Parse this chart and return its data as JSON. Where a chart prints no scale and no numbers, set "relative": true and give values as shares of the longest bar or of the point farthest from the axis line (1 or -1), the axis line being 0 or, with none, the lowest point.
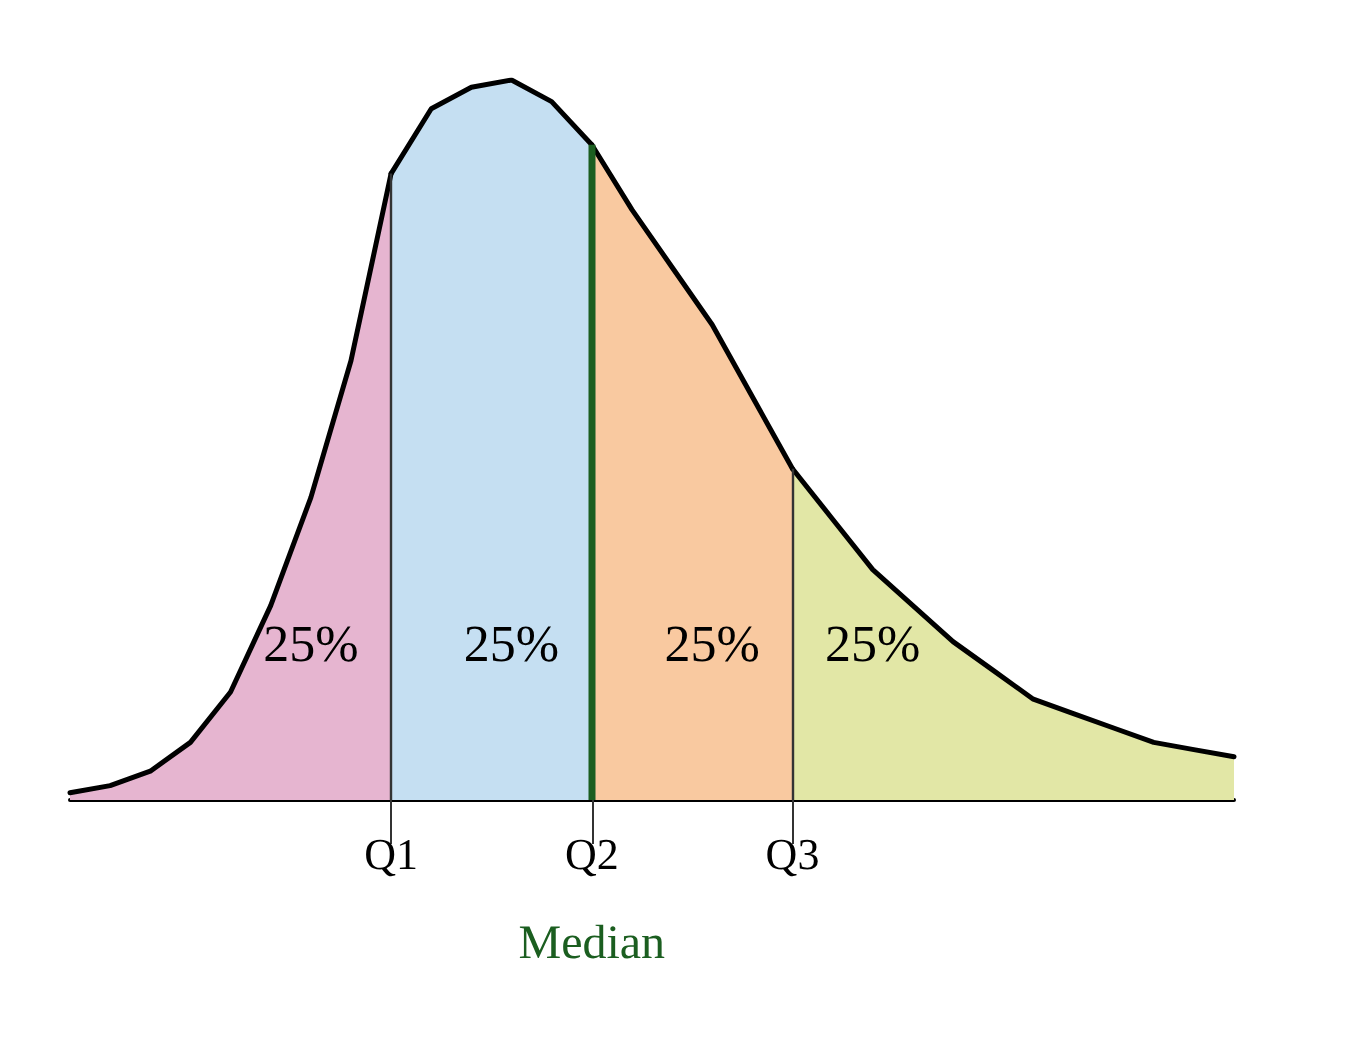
{
  "chart_data": {
    "type": "area",
    "relative": true,
    "grid": false,
    "marker": "none",
    "categories": [
      null,
      null,
      null,
      null,
      null,
      null,
      null,
      null,
      "Q1",
      null,
      null,
      null,
      null,
      "Q2",
      null,
      null,
      null,
      null,
      "Q3",
      null,
      null,
      null,
      null,
      null,
      null,
      null,
      null,
      null,
      null,
      null
    ],
    "series": [
      {
        "color": "#e6b5d0",
        "values": [
          0.01,
          0.02,
          0.04,
          0.08,
          0.15,
          0.27,
          0.42,
          0.61,
          0.87,
          null,
          null,
          null,
          null,
          null,
          null,
          null,
          null,
          null,
          null,
          null,
          null,
          null,
          null,
          null,
          null,
          null,
          null,
          null,
          null,
          null
        ]
      },
      {
        "color": "#c5dff2",
        "values": [
          null,
          null,
          null,
          null,
          null,
          null,
          null,
          null,
          0.87,
          0.96,
          0.99,
          1,
          0.97,
          0.91,
          null,
          null,
          null,
          null,
          null,
          null,
          null,
          null,
          null,
          null,
          null,
          null,
          null,
          null,
          null,
          null
        ]
      },
      {
        "color": "#f9c9a0",
        "values": [
          null,
          null,
          null,
          null,
          null,
          null,
          null,
          null,
          null,
          null,
          null,
          null,
          null,
          0.91,
          0.82,
          0.74,
          0.66,
          0.56,
          0.46,
          null,
          null,
          null,
          null,
          null,
          null,
          null,
          null,
          null,
          null,
          null
        ]
      },
      {
        "color": "#e2e7a6",
        "values": [
          null,
          null,
          null,
          null,
          null,
          null,
          null,
          null,
          null,
          null,
          null,
          null,
          null,
          null,
          null,
          null,
          null,
          null,
          0.46,
          0.39,
          0.32,
          0.27,
          0.22,
          0.18,
          0.14,
          0.12,
          0.1,
          0.08,
          0.07,
          0.06
        ]
      }
    ],
    "ref_lines": [
      {
        "axis": "x",
        "value": "Q1",
        "color": "#333333"
      },
      {
        "axis": "x",
        "value": "Q2",
        "label": "Median",
        "color": "#1b5e20"
      },
      {
        "axis": "x",
        "value": "Q3",
        "color": "#333333"
      }
    ],
    "annotations": [
      "25%",
      "25%",
      "25%",
      "25%"
    ]
  }
}
